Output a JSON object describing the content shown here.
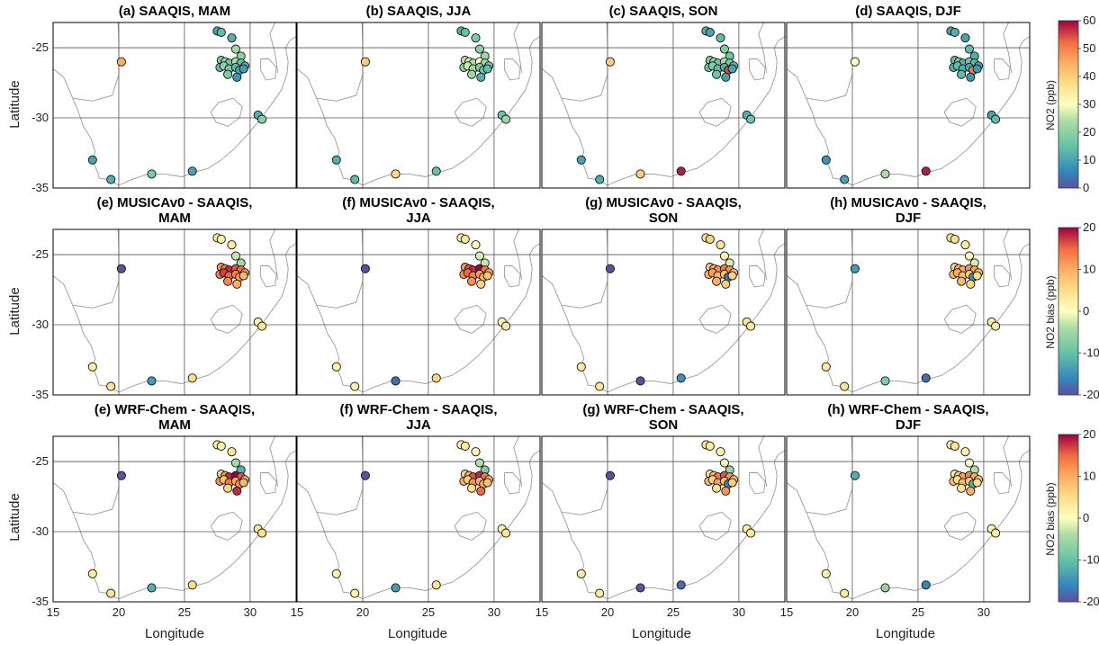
{
  "figure": {
    "xlabel": "Longitude",
    "ylabel": "Latitude",
    "lon_ticks": [
      "15",
      "20",
      "25",
      "30"
    ],
    "lat_ticks": [
      "-25",
      "-30",
      "-35"
    ]
  },
  "chart_data": {
    "type": "scatter",
    "x_range": [
      15,
      33.5
    ],
    "y_range": [
      -35,
      -23.2
    ],
    "gridlines": {
      "lon": [
        20,
        25,
        30
      ],
      "lat": [
        -25,
        -30
      ]
    },
    "rows": [
      {
        "titles": [
          [
            "(a) SAAQIS, MAM"
          ],
          [
            "(b) SAAQIS, JJA"
          ],
          [
            "(c) SAAQIS, SON"
          ],
          [
            "(d) SAAQIS, DJF"
          ]
        ],
        "colorbar": {
          "label": "NO2 (ppb)",
          "min": 0,
          "max": 60,
          "ticks": [
            "0",
            "10",
            "20",
            "30",
            "40",
            "50",
            "60"
          ]
        }
      },
      {
        "titles": [
          [
            "(e) MUSICAv0 - SAAQIS,",
            "MAM"
          ],
          [
            "(f) MUSICAv0 - SAAQIS,",
            "JJA"
          ],
          [
            "(g) MUSICAv0 - SAAQIS,",
            "SON"
          ],
          [
            "(h) MUSICAv0 - SAAQIS,",
            "DJF"
          ]
        ],
        "colorbar": {
          "label": "NO2 bias (ppb)",
          "min": -20,
          "max": 20,
          "ticks": [
            "-20",
            "-10",
            "0",
            "10",
            "20"
          ]
        }
      },
      {
        "titles": [
          [
            "(e) WRF-Chem - SAAQIS,",
            "MAM"
          ],
          [
            "(f) WRF-Chem - SAAQIS,",
            "JJA"
          ],
          [
            "(g) WRF-Chem - SAAQIS,",
            "SON"
          ],
          [
            "(h) WRF-Chem - SAAQIS,",
            "DJF"
          ]
        ],
        "colorbar": {
          "label": "NO2 bias (ppb)",
          "min": -20,
          "max": 20,
          "ticks": [
            "-20",
            "-10",
            "0",
            "10",
            "20"
          ]
        }
      }
    ],
    "stations": {
      "lon": [
        27.5,
        27.8,
        28.6,
        28.9,
        29.3,
        20.2,
        27.8,
        28.1,
        28.4,
        28.9,
        29.3,
        29.6,
        27.7,
        28.0,
        28.4,
        28.9,
        29.2,
        29.5,
        28.3,
        29.0,
        30.6,
        30.9,
        18.0,
        19.4,
        22.5,
        25.6
      ],
      "lat": [
        -23.8,
        -23.9,
        -24.3,
        -25.1,
        -25.6,
        -26.0,
        -25.9,
        -26.0,
        -26.1,
        -26.0,
        -26.1,
        -26.3,
        -26.4,
        -26.3,
        -26.5,
        -26.4,
        -26.6,
        -26.5,
        -26.9,
        -27.1,
        -29.8,
        -30.1,
        -33.0,
        -34.4,
        -34.0,
        -33.8
      ],
      "series": [
        {
          "panel": "(a) SAAQIS, MAM",
          "values": [
            10,
            14,
            12,
            22,
            20,
            45,
            18,
            22,
            16,
            24,
            15,
            12,
            14,
            20,
            17,
            13,
            11,
            9,
            18,
            8,
            12,
            20,
            10,
            12,
            18,
            10
          ]
        },
        {
          "panel": "(b) SAAQIS, JJA",
          "values": [
            12,
            15,
            18,
            20,
            22,
            40,
            25,
            28,
            24,
            30,
            22,
            18,
            20,
            26,
            22,
            18,
            16,
            14,
            22,
            12,
            16,
            22,
            12,
            14,
            38,
            15
          ]
        },
        {
          "panel": "(c) SAAQIS, SON",
          "values": [
            12,
            10,
            14,
            18,
            16,
            40,
            18,
            22,
            16,
            24,
            18,
            14,
            16,
            18,
            14,
            12,
            55,
            10,
            16,
            10,
            12,
            16,
            10,
            12,
            40,
            58
          ]
        },
        {
          "panel": "(d) SAAQIS, DJF",
          "values": [
            10,
            12,
            10,
            14,
            12,
            30,
            14,
            18,
            12,
            16,
            14,
            10,
            12,
            14,
            12,
            10,
            50,
            8,
            14,
            8,
            10,
            14,
            8,
            10,
            24,
            58
          ]
        },
        {
          "panel": "(e) MUSICAv0 - SAAQIS, MAM",
          "values": [
            4,
            2,
            3,
            -3,
            -5,
            -20,
            12,
            14,
            18,
            16,
            15,
            12,
            14,
            17,
            15,
            13,
            11,
            9,
            13,
            10,
            3,
            4,
            3,
            4,
            -14,
            5
          ]
        },
        {
          "panel": "(f) MUSICAv0 - SAAQIS, JJA",
          "values": [
            3,
            4,
            1,
            -2,
            -3,
            -20,
            12,
            16,
            18,
            20,
            14,
            10,
            12,
            15,
            13,
            11,
            9,
            8,
            12,
            6,
            0,
            3,
            2,
            2,
            -18,
            6
          ]
        },
        {
          "panel": "(g) MUSICAv0 - SAAQIS, SON",
          "values": [
            5,
            6,
            4,
            2,
            -2,
            -20,
            8,
            10,
            12,
            14,
            12,
            9,
            10,
            11,
            9,
            8,
            -18,
            6,
            10,
            7,
            4,
            3,
            3,
            4,
            -20,
            -15
          ]
        },
        {
          "panel": "(h) MUSICAv0 - SAAQIS, DJF",
          "values": [
            4,
            5,
            3,
            1,
            -2,
            -14,
            7,
            9,
            10,
            12,
            11,
            8,
            9,
            10,
            8,
            7,
            -15,
            5,
            9,
            6,
            3,
            3,
            3,
            4,
            -8,
            -18
          ]
        },
        {
          "panel": "(e) WRF-Chem - SAAQIS, MAM",
          "values": [
            3,
            2,
            4,
            -5,
            -12,
            -20,
            6,
            12,
            18,
            20,
            16,
            10,
            12,
            8,
            14,
            10,
            12,
            9,
            6,
            18,
            4,
            5,
            3,
            4,
            -12,
            5
          ]
        },
        {
          "panel": "(f) WRF-Chem - SAAQIS, JJA",
          "values": [
            2,
            3,
            1,
            -4,
            -8,
            -20,
            6,
            10,
            16,
            18,
            14,
            9,
            10,
            7,
            12,
            9,
            10,
            8,
            5,
            15,
            2,
            4,
            2,
            2,
            -14,
            4
          ]
        },
        {
          "panel": "(g) WRF-Chem - SAAQIS, SON",
          "values": [
            4,
            3,
            2,
            -1,
            -6,
            -20,
            5,
            8,
            14,
            16,
            12,
            8,
            9,
            6,
            11,
            8,
            -16,
            6,
            4,
            12,
            3,
            3,
            3,
            3,
            -20,
            -18
          ]
        },
        {
          "panel": "(h) WRF-Chem - SAAQIS, DJF",
          "values": [
            3,
            4,
            2,
            0,
            -4,
            -12,
            4,
            7,
            11,
            13,
            10,
            7,
            8,
            5,
            9,
            7,
            -12,
            5,
            4,
            10,
            2,
            3,
            2,
            3,
            -6,
            -16
          ]
        }
      ]
    }
  }
}
